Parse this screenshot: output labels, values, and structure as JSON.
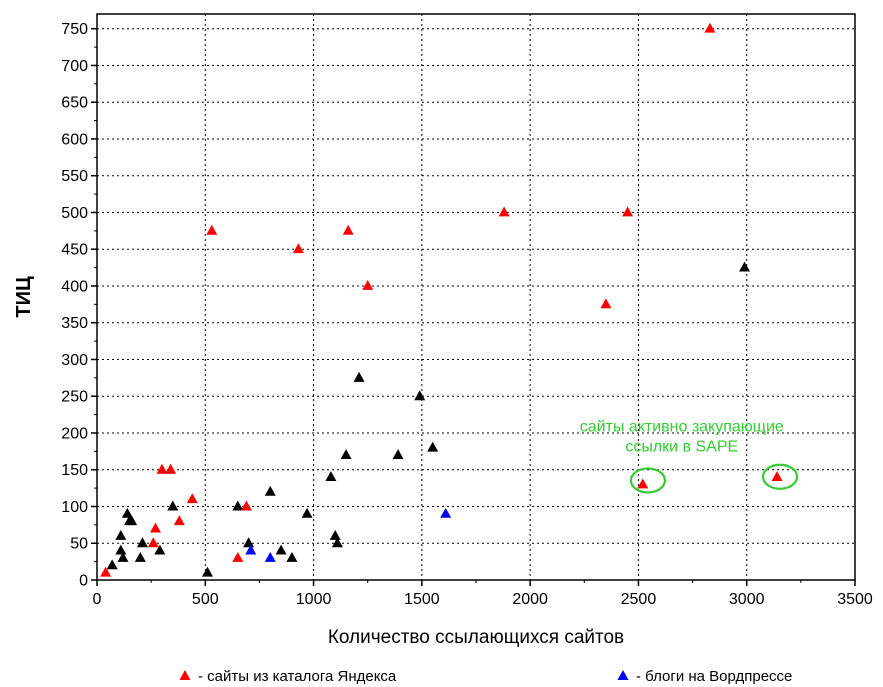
{
  "chart_data": {
    "type": "scatter",
    "xlabel": "Количество ссылающихся сайтов",
    "ylabel": "ТИЦ",
    "xlim": [
      0,
      3500
    ],
    "ylim": [
      0,
      770
    ],
    "xticks": [
      0,
      500,
      1000,
      1500,
      2000,
      2500,
      3000,
      3500
    ],
    "yticks": [
      0,
      50,
      100,
      150,
      200,
      250,
      300,
      350,
      400,
      450,
      500,
      550,
      600,
      650,
      700,
      750
    ],
    "grid": true,
    "legend_position": "bottom",
    "series": [
      {
        "name": "- сайты из каталога Яндекса",
        "color": "#ff0000",
        "marker": "triangle",
        "points": [
          [
            40,
            10
          ],
          [
            270,
            70
          ],
          [
            260,
            50
          ],
          [
            300,
            150
          ],
          [
            340,
            150
          ],
          [
            380,
            80
          ],
          [
            440,
            110
          ],
          [
            530,
            475
          ],
          [
            650,
            30
          ],
          [
            690,
            100
          ],
          [
            930,
            450
          ],
          [
            1160,
            475
          ],
          [
            1250,
            400
          ],
          [
            1880,
            500
          ],
          [
            2350,
            375
          ],
          [
            2450,
            500
          ],
          [
            2520,
            130
          ],
          [
            2830,
            750
          ],
          [
            3140,
            140
          ]
        ]
      },
      {
        "name": "",
        "color": "#000000",
        "marker": "triangle",
        "points": [
          [
            70,
            20
          ],
          [
            110,
            60
          ],
          [
            110,
            40
          ],
          [
            120,
            30
          ],
          [
            140,
            90
          ],
          [
            150,
            80
          ],
          [
            160,
            80
          ],
          [
            200,
            30
          ],
          [
            210,
            50
          ],
          [
            290,
            40
          ],
          [
            350,
            100
          ],
          [
            510,
            10
          ],
          [
            650,
            100
          ],
          [
            700,
            50
          ],
          [
            800,
            120
          ],
          [
            850,
            40
          ],
          [
            900,
            30
          ],
          [
            970,
            90
          ],
          [
            1080,
            140
          ],
          [
            1100,
            60
          ],
          [
            1110,
            50
          ],
          [
            1150,
            170
          ],
          [
            1210,
            275
          ],
          [
            1390,
            170
          ],
          [
            1490,
            250
          ],
          [
            1550,
            180
          ],
          [
            2990,
            425
          ]
        ]
      },
      {
        "name": "- блоги на Вордпрессе",
        "color": "#0000ff",
        "marker": "triangle",
        "points": [
          [
            710,
            40
          ],
          [
            800,
            30
          ],
          [
            1610,
            90
          ]
        ]
      }
    ],
    "annotations": [
      {
        "text_lines": [
          "сайты активно закупающие",
          "ссылки в SAPE"
        ],
        "color": "#33cc33",
        "anchor": [
          2700,
          195
        ],
        "circled_points": [
          [
            2530,
            130
          ],
          [
            3140,
            135
          ]
        ]
      }
    ]
  }
}
